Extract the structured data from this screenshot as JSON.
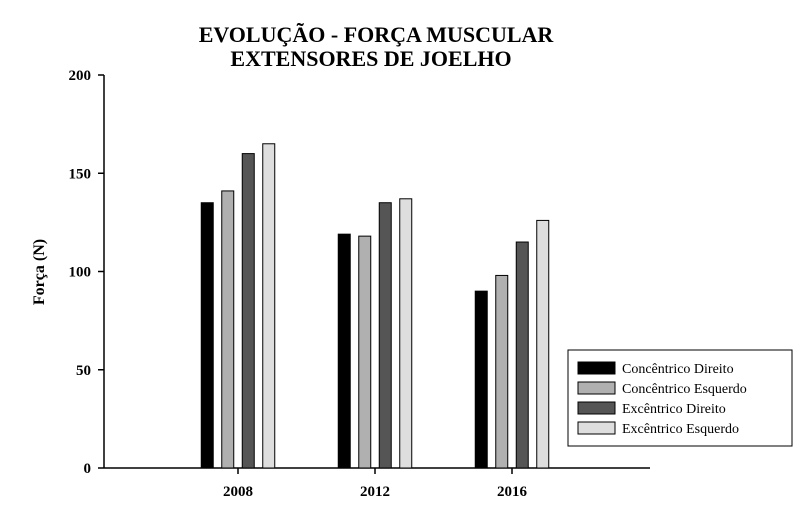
{
  "chart_data": {
    "type": "bar",
    "title": "EVOLUÇÃO - FORÇA MUSCULAR",
    "subtitle": "EXTENSORES DE JOELHO",
    "xlabel": "",
    "ylabel": "Força (N)",
    "ylim": [
      0,
      200
    ],
    "yticks": [
      0,
      50,
      100,
      150,
      200
    ],
    "categories": [
      "2008",
      "2012",
      "2016"
    ],
    "series": [
      {
        "name": "Concêntrico Direito",
        "color": "#000000",
        "values": [
          135,
          119,
          90
        ]
      },
      {
        "name": "Concêntrico Esquerdo",
        "color": "#b0b0b0",
        "values": [
          141,
          118,
          98
        ]
      },
      {
        "name": "Excêntrico Direito",
        "color": "#555555",
        "values": [
          160,
          135,
          115
        ]
      },
      {
        "name": "Excêntrico Esquerdo",
        "color": "#dedede",
        "values": [
          165,
          137,
          126
        ]
      }
    ],
    "grid": false,
    "legend_position": "bottom-right"
  }
}
